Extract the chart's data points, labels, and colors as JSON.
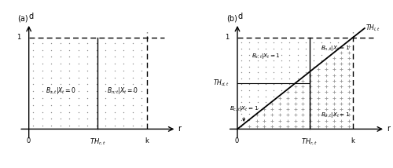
{
  "fig_width": 5.0,
  "fig_height": 2.14,
  "dpi": 100,
  "panel_a": {
    "label": "(a)",
    "THr": 0.42,
    "k": 0.72,
    "d_level": 1.0,
    "label_Bs": "$B_{s,t}|X_t = 0$",
    "label_Bn": "$B_{n,t}|X_t = 0$",
    "xlabel": "r",
    "ylabel": "d"
  },
  "panel_b": {
    "label": "(b)",
    "THr": 0.45,
    "THd": 0.5,
    "k": 0.72,
    "d_level": 1.0,
    "label_Bs": "$B_{s,t}|X_t = 1$",
    "label_Bn": "$B_{n,t}|X_t = 1$",
    "label_Bo": "$B_{o,t}|X_t = 1$",
    "label_Bc": "$B_{c,t}|X_t = 1$",
    "label_THd": "$TH_{d,t}$",
    "label_THl": "$TH_{l,t}$",
    "xlabel": "r",
    "ylabel": "d"
  }
}
